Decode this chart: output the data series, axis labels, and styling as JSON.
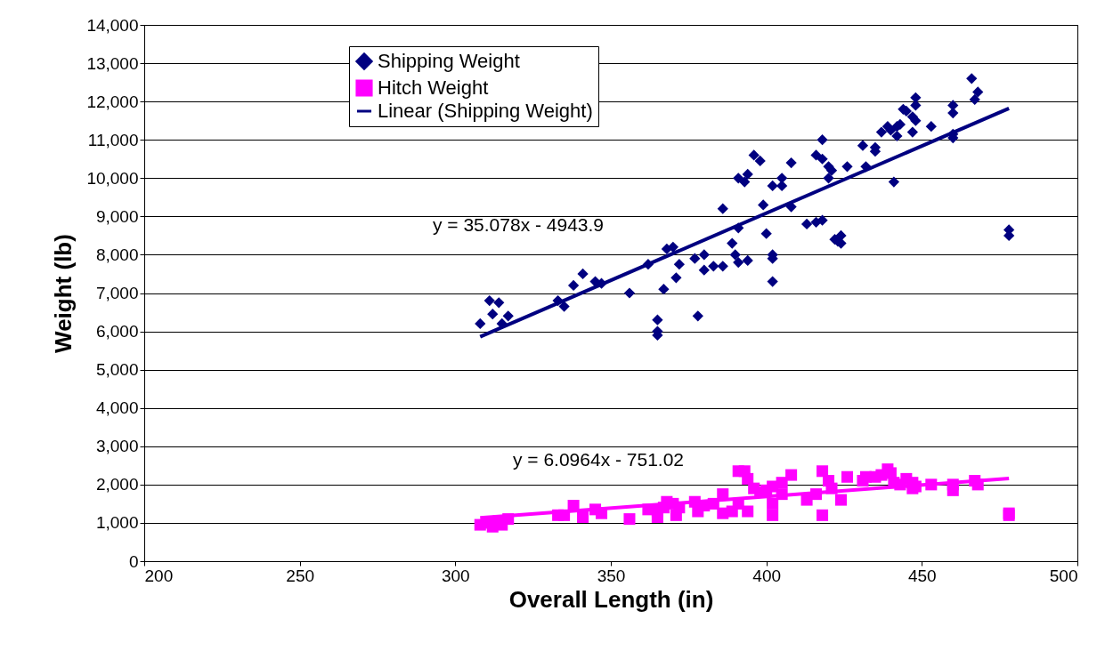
{
  "chart_data": {
    "type": "scatter",
    "xlabel": "Overall Length (in)",
    "ylabel": "Weight (lb)",
    "xlim": [
      200,
      500
    ],
    "xticks": [
      200,
      250,
      300,
      350,
      400,
      450,
      500
    ],
    "ylim": [
      0,
      14000
    ],
    "yticks": [
      0,
      {
        "value": 1000,
        "label": "1,000"
      },
      {
        "value": 2000,
        "label": "2,000"
      },
      {
        "value": 3000,
        "label": "3,000"
      },
      {
        "value": 4000,
        "label": "4,000"
      },
      {
        "value": 5000,
        "label": "5,000"
      },
      {
        "value": 6000,
        "label": "6,000"
      },
      {
        "value": 7000,
        "label": "7,000"
      },
      {
        "value": 8000,
        "label": "8,000"
      },
      {
        "value": 9000,
        "label": "9,000"
      },
      {
        "value": 10000,
        "label": "10,000"
      },
      {
        "value": 11000,
        "label": "11,000"
      },
      {
        "value": 12000,
        "label": "12,000"
      },
      {
        "value": 13000,
        "label": "13,000"
      },
      {
        "value": 14000,
        "label": "14,000"
      }
    ],
    "grid": "y",
    "legend": "top left",
    "annotations": [
      "y = 35.078x - 4943.9",
      "y = 6.0964x - 751.02"
    ],
    "series": [
      {
        "name": "Shipping Weight",
        "marker": "diamond",
        "color": "#000080",
        "x": [
          308,
          311,
          312,
          314,
          315,
          317,
          333,
          335,
          338,
          341,
          345,
          347,
          356,
          362,
          365,
          365,
          365,
          367,
          368,
          370,
          371,
          372,
          377,
          378,
          380,
          380,
          383,
          386,
          386,
          389,
          390,
          391,
          391,
          391,
          393,
          394,
          394,
          396,
          398,
          399,
          400,
          402,
          402,
          402,
          402,
          405,
          405,
          408,
          408,
          413,
          416,
          416,
          418,
          418,
          418,
          420,
          420,
          421,
          422,
          423,
          424,
          424,
          426,
          431,
          432,
          435,
          435,
          437,
          439,
          440,
          441,
          442,
          442,
          443,
          444,
          445,
          447,
          447,
          448,
          448,
          448,
          453,
          460,
          460,
          460,
          460,
          466,
          467,
          468,
          478,
          478
        ],
        "values": [
          6200,
          6800,
          6450,
          6750,
          6200,
          6400,
          6800,
          6650,
          7200,
          7500,
          7300,
          7250,
          7000,
          7750,
          6300,
          6000,
          5900,
          7100,
          8150,
          8200,
          7400,
          7750,
          7900,
          6400,
          7600,
          8000,
          7700,
          7700,
          9200,
          8300,
          8000,
          7800,
          8700,
          10000,
          9900,
          10100,
          7850,
          10600,
          10450,
          9300,
          8550,
          9800,
          8000,
          7900,
          7300,
          10000,
          9800,
          10400,
          9250,
          8800,
          8850,
          10600,
          11000,
          10500,
          8900,
          10300,
          10000,
          10200,
          8400,
          8350,
          8500,
          8300,
          10300,
          10850,
          10300,
          10800,
          10700,
          11200,
          11350,
          11250,
          9900,
          11100,
          11350,
          11400,
          11800,
          11750,
          11200,
          11600,
          12100,
          11900,
          11500,
          11350,
          11900,
          11700,
          11150,
          11050,
          12600,
          12050,
          12250,
          8650,
          8500
        ]
      },
      {
        "name": "Hitch Weight",
        "marker": "square",
        "color": "#ff00ff",
        "x": [
          308,
          311,
          312,
          314,
          315,
          317,
          333,
          335,
          338,
          341,
          345,
          347,
          356,
          362,
          365,
          365,
          367,
          368,
          370,
          371,
          372,
          377,
          378,
          380,
          383,
          386,
          386,
          389,
          391,
          391,
          393,
          394,
          394,
          396,
          398,
          400,
          402,
          402,
          402,
          405,
          405,
          408,
          413,
          416,
          418,
          418,
          420,
          421,
          424,
          426,
          431,
          432,
          435,
          437,
          439,
          440,
          441,
          443,
          445,
          447,
          447,
          448,
          453,
          460,
          460,
          467,
          468,
          478,
          478
        ],
        "values": [
          950,
          1000,
          900,
          1050,
          950,
          1100,
          1200,
          1200,
          1450,
          1150,
          1350,
          1250,
          1100,
          1350,
          1300,
          1150,
          1400,
          1550,
          1500,
          1200,
          1400,
          1550,
          1300,
          1450,
          1500,
          1750,
          1250,
          1300,
          1500,
          2350,
          2350,
          1300,
          2150,
          1900,
          1800,
          1850,
          1950,
          1200,
          1500,
          2050,
          1750,
          2250,
          1600,
          1750,
          2350,
          1200,
          2100,
          1900,
          1600,
          2200,
          2100,
          2200,
          2200,
          2250,
          2400,
          2300,
          2050,
          2000,
          2150,
          2050,
          1900,
          1950,
          2000,
          2000,
          1850,
          2100,
          2000,
          1250,
          1200
        ]
      },
      {
        "name": "Linear (Shipping Weight)",
        "type": "line",
        "color": "#000080",
        "x": [
          308,
          478
        ],
        "values": [
          5860,
          11820
        ]
      },
      {
        "type": "line",
        "color": "#ff00ff",
        "x": [
          308,
          478
        ],
        "values": [
          1130,
          2160
        ]
      }
    ]
  }
}
